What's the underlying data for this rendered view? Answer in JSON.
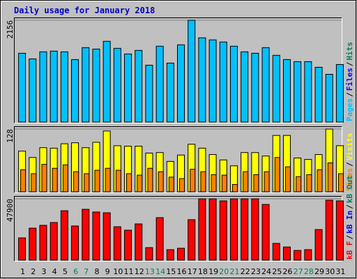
{
  "title": "Daily usage for January 2018",
  "separator": "/",
  "chart_data": [
    {
      "type": "bar",
      "ylim": [
        0,
        2156
      ],
      "yticks": [
        2156
      ],
      "legend": [
        {
          "text": "Pages",
          "color": "#00c0ff"
        },
        {
          "text": "Files",
          "color": "#0000ff"
        },
        {
          "text": "Hits",
          "color": "#00805c"
        }
      ],
      "series": [
        {
          "color": "#00c0ff",
          "values": [
            1457,
            1338,
            1487,
            1502,
            1487,
            1323,
            1576,
            1546,
            1710,
            1561,
            1442,
            1517,
            1204,
            1606,
            1249,
            1636,
            2156,
            1784,
            1740,
            1695,
            1606,
            1487,
            1457,
            1576,
            1413,
            1323,
            1279,
            1279,
            1160,
            1011,
            1219
          ]
        }
      ]
    },
    {
      "type": "bar",
      "ylim": [
        0,
        128
      ],
      "yticks": [
        128
      ],
      "legend": [
        {
          "text": "Sites",
          "color": "#ff8000"
        },
        {
          "text": "Visits",
          "color": "#ffff00"
        }
      ],
      "series": [
        {
          "color": "#ffff00",
          "values": [
            83,
            70,
            90,
            89,
            98,
            100,
            90,
            101,
            124,
            94,
            93,
            93,
            79,
            80,
            62,
            75,
            97,
            89,
            76,
            65,
            53,
            80,
            80,
            73,
            115,
            115,
            69,
            66,
            76,
            128,
            94
          ]
        },
        {
          "color": "#ff8000",
          "values": [
            45,
            37,
            56,
            48,
            55,
            41,
            37,
            44,
            48,
            44,
            37,
            34,
            48,
            41,
            30,
            27,
            46,
            41,
            35,
            34,
            15,
            41,
            35,
            41,
            70,
            51,
            31,
            35,
            45,
            59,
            37
          ]
        }
      ]
    },
    {
      "type": "bar",
      "ylim": [
        0,
        47900
      ],
      "yticks": [
        47900
      ],
      "legend": [
        {
          "text": "kB F",
          "color": "#ff0000"
        },
        {
          "text": "kB In",
          "color": "#0000ff"
        },
        {
          "text": "kB Out",
          "color": "#00805c"
        }
      ],
      "series": [
        {
          "color": "#ff0000",
          "values": [
            17400,
            25000,
            27200,
            29400,
            38600,
            26700,
            39700,
            37600,
            37000,
            26100,
            23400,
            28300,
            9800,
            33200,
            8200,
            9300,
            31600,
            47900,
            47900,
            46300,
            47900,
            47900,
            47900,
            43500,
            13100,
            10300,
            7600,
            8200,
            23900,
            46800,
            46300
          ]
        }
      ],
      "categories": [
        "1",
        "2",
        "3",
        "4",
        "5",
        "6",
        "7",
        "8",
        "9",
        "10",
        "11",
        "12",
        "13",
        "14",
        "15",
        "16",
        "17",
        "18",
        "19",
        "20",
        "21",
        "22",
        "23",
        "24",
        "25",
        "26",
        "27",
        "28",
        "29",
        "30",
        "31"
      ],
      "label_colors": [
        "#000000",
        "#000000",
        "#000000",
        "#000000",
        "#000000",
        "#00805c",
        "#00805c",
        "#000000",
        "#000000",
        "#000000",
        "#000000",
        "#000000",
        "#00805c",
        "#00805c",
        "#000000",
        "#000000",
        "#000000",
        "#000000",
        "#000000",
        "#00805c",
        "#00805c",
        "#000000",
        "#000000",
        "#000000",
        "#000000",
        "#000000",
        "#00805c",
        "#00805c",
        "#000000",
        "#000000",
        "#000000"
      ]
    }
  ]
}
